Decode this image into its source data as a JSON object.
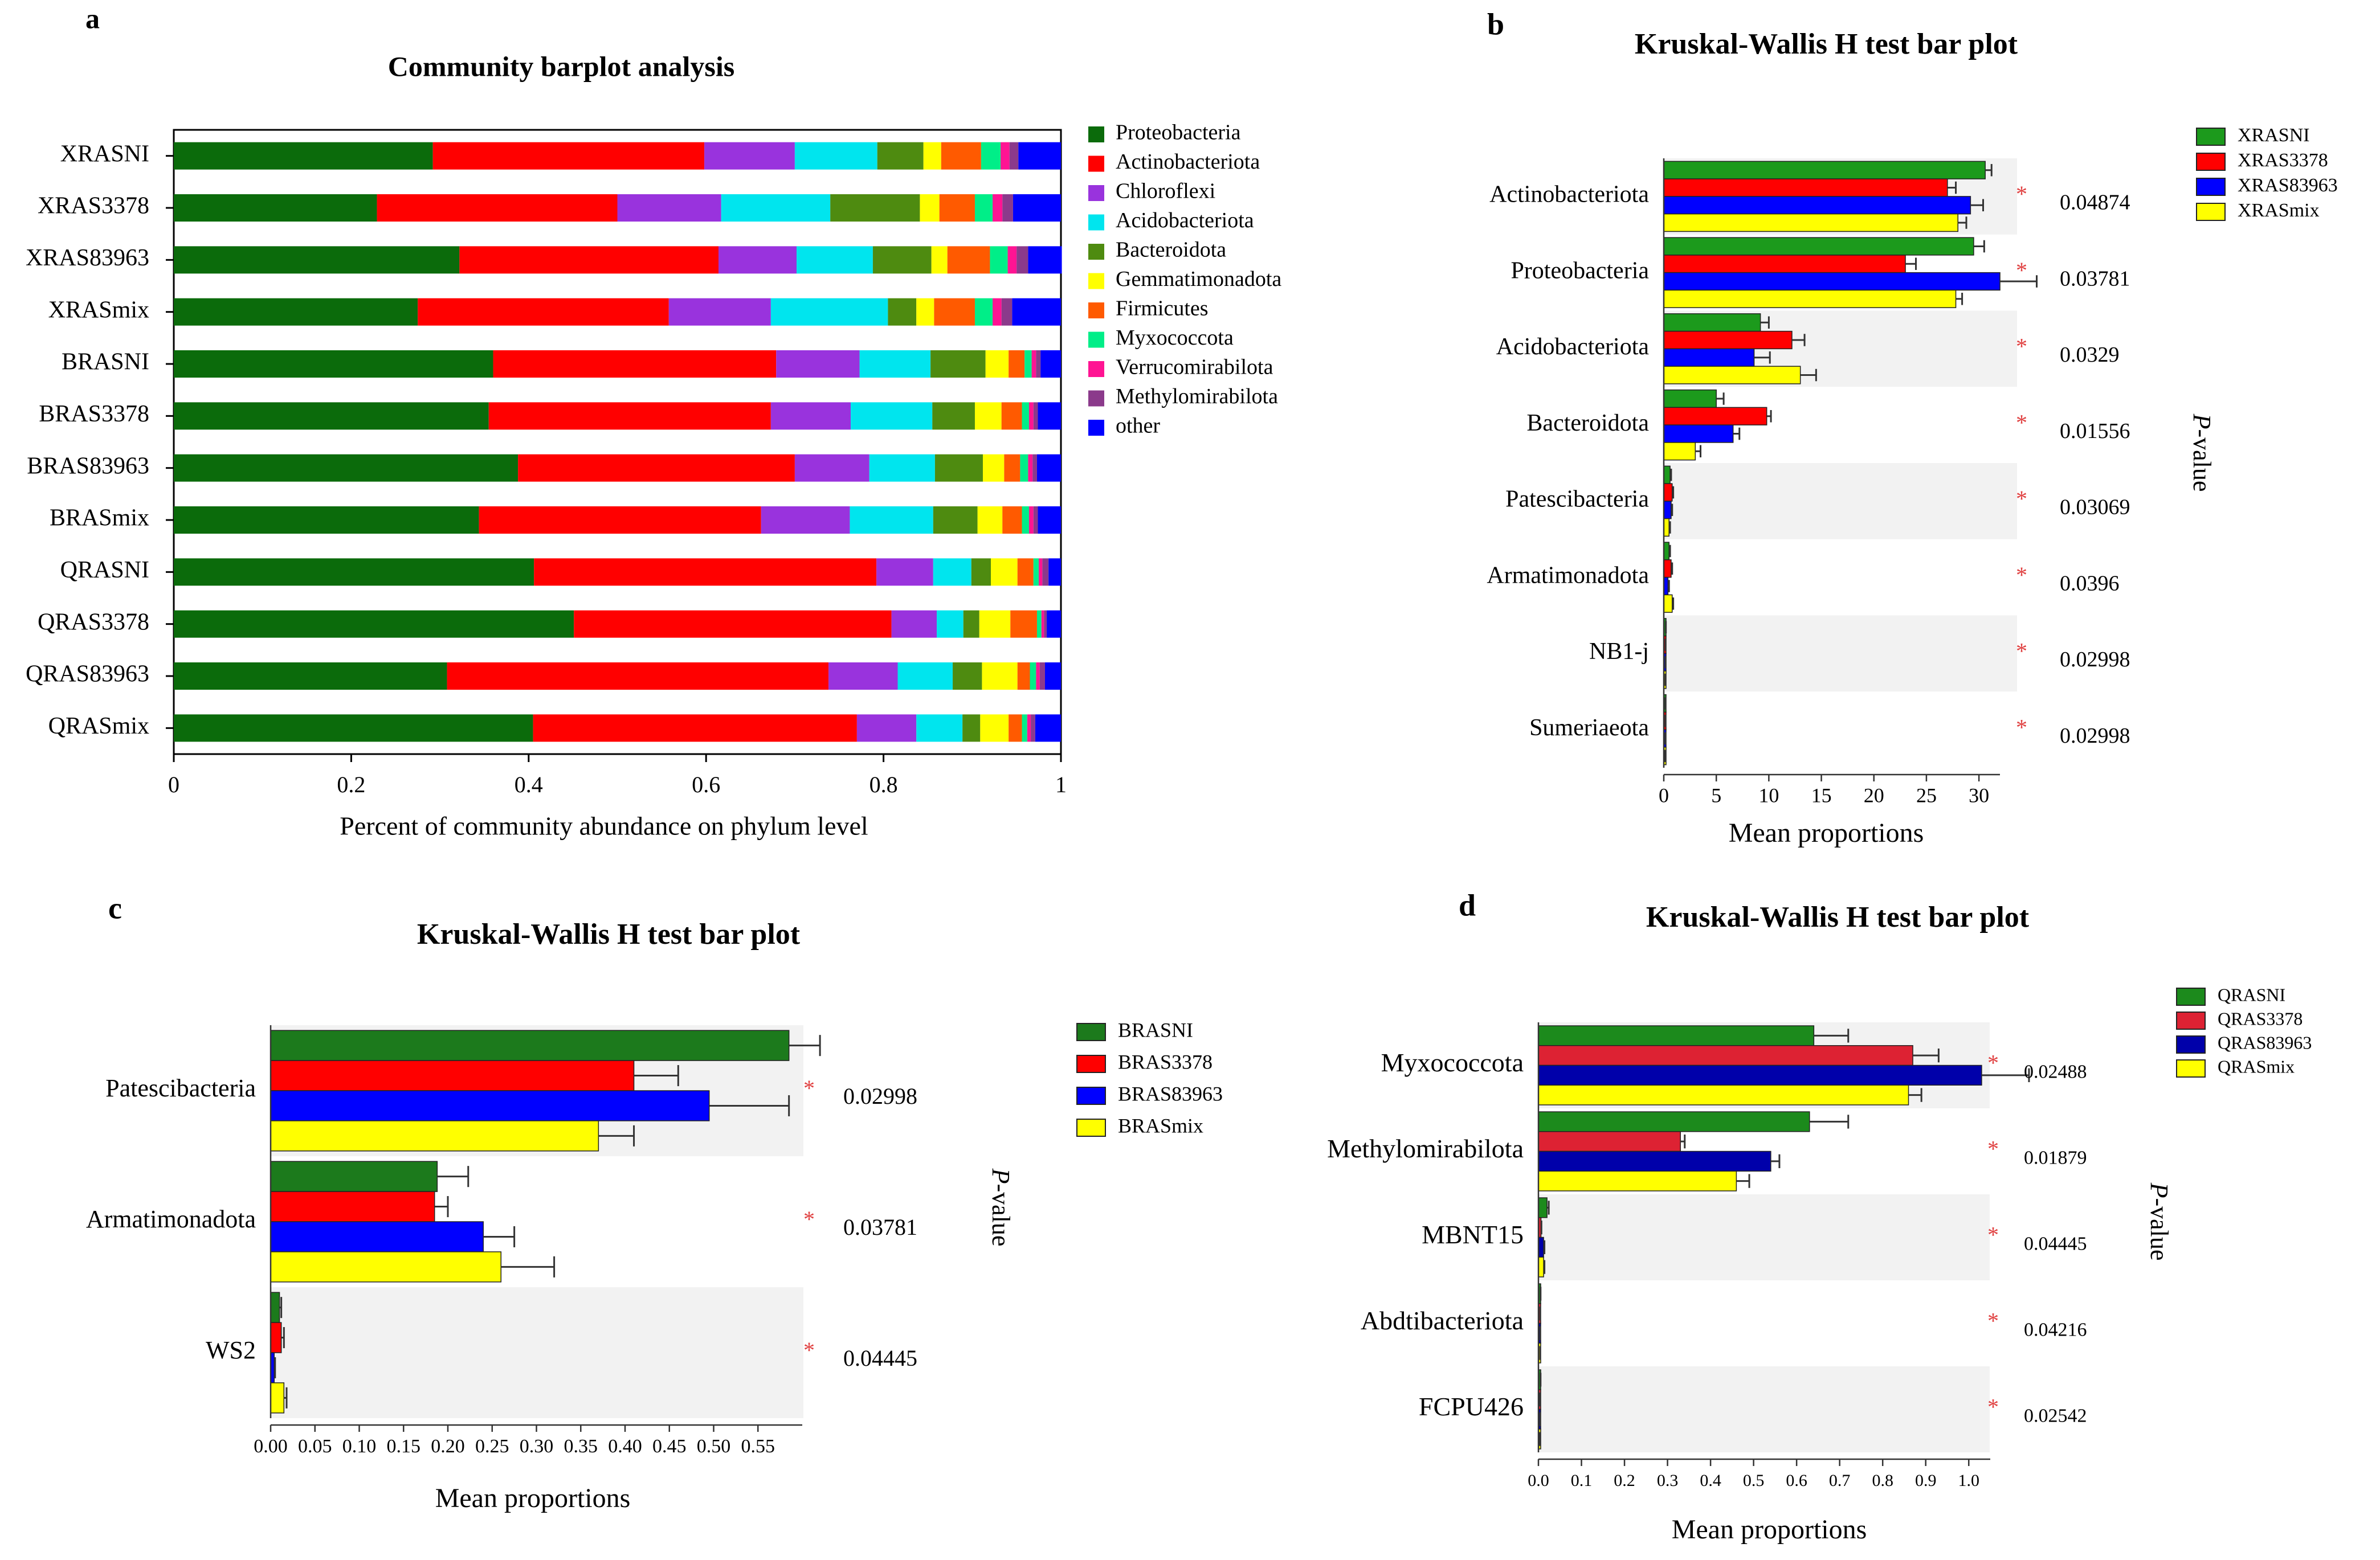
{
  "chart_data": [
    {
      "panel": "a",
      "type": "bar",
      "stacked": true,
      "orientation": "horizontal",
      "title": "Community barplot analysis",
      "xlabel": "Percent of community abundance on phylum level",
      "ylabel": "",
      "xlim": [
        0,
        1
      ],
      "xticks": [
        "0",
        "0.2",
        "0.4",
        "0.6",
        "0.8",
        "1"
      ],
      "legend_position": "right",
      "categories": [
        "XRASNI",
        "XRAS3378",
        "XRAS83963",
        "XRASmix",
        "BRASNI",
        "BRAS3378",
        "BRAS83963",
        "BRASmix",
        "QRASNI",
        "QRAS3378",
        "QRAS83963",
        "QRASmix"
      ],
      "series": [
        {
          "name": "Proteobacteria",
          "color": "#0b6b0b",
          "values": [
            0.292,
            0.229,
            0.322,
            0.275,
            0.36,
            0.355,
            0.388,
            0.344,
            0.406,
            0.451,
            0.308,
            0.405
          ]
        },
        {
          "name": "Actinobacteriota",
          "color": "#ff0000",
          "values": [
            0.306,
            0.271,
            0.292,
            0.283,
            0.319,
            0.318,
            0.312,
            0.318,
            0.386,
            0.358,
            0.43,
            0.365
          ]
        },
        {
          "name": "Chloroflexi",
          "color": "#9933dd",
          "values": [
            0.102,
            0.117,
            0.088,
            0.115,
            0.094,
            0.09,
            0.084,
            0.1,
            0.064,
            0.051,
            0.078,
            0.067
          ]
        },
        {
          "name": "Acidobacteriota",
          "color": "#00e5ee",
          "values": [
            0.093,
            0.123,
            0.086,
            0.132,
            0.08,
            0.092,
            0.074,
            0.094,
            0.043,
            0.03,
            0.062,
            0.052
          ]
        },
        {
          "name": "Bacteroidota",
          "color": "#4e8b10",
          "values": [
            0.052,
            0.101,
            0.066,
            0.032,
            0.062,
            0.048,
            0.054,
            0.05,
            0.022,
            0.018,
            0.033,
            0.02
          ]
        },
        {
          "name": "Gemmatimonadota",
          "color": "#ffff00",
          "values": [
            0.02,
            0.022,
            0.018,
            0.02,
            0.026,
            0.03,
            0.024,
            0.028,
            0.03,
            0.035,
            0.04,
            0.032
          ]
        },
        {
          "name": "Firmicutes",
          "color": "#ff5a00",
          "values": [
            0.045,
            0.04,
            0.048,
            0.046,
            0.018,
            0.023,
            0.018,
            0.022,
            0.018,
            0.03,
            0.014,
            0.015
          ]
        },
        {
          "name": "Myxococcota",
          "color": "#00ee88",
          "values": [
            0.022,
            0.02,
            0.02,
            0.02,
            0.008,
            0.008,
            0.009,
            0.008,
            0.006,
            0.005,
            0.007,
            0.006
          ]
        },
        {
          "name": "Verrucomirabilota",
          "color": "#ff1493",
          "values": [
            0.01,
            0.011,
            0.01,
            0.01,
            0.005,
            0.005,
            0.005,
            0.005,
            0.004,
            0.003,
            0.004,
            0.004
          ]
        },
        {
          "name": "Methylomirabilota",
          "color": "#8b3a8b",
          "values": [
            0.01,
            0.012,
            0.013,
            0.012,
            0.005,
            0.005,
            0.005,
            0.005,
            0.007,
            0.003,
            0.006,
            0.005
          ]
        },
        {
          "name": "other",
          "color": "#0000ff",
          "values": [
            0.048,
            0.054,
            0.038,
            0.055,
            0.023,
            0.026,
            0.027,
            0.026,
            0.014,
            0.016,
            0.018,
            0.029
          ]
        }
      ]
    },
    {
      "panel": "b",
      "type": "bar",
      "orientation": "horizontal",
      "title": "Kruskal-Wallis H test bar plot",
      "xlabel": "Mean proportions",
      "ylabel": "P-value",
      "xlim": [
        0,
        32
      ],
      "xticks": [
        "0",
        "5",
        "10",
        "15",
        "20",
        "25",
        "30"
      ],
      "legend_position": "top-right",
      "categories": [
        "Actinobacteriota",
        "Proteobacteria",
        "Acidobacteriota",
        "Bacteroidota",
        "Patescibacteria",
        "Armatimonadota",
        "NB1-j",
        "Sumeriaeota"
      ],
      "p_values": [
        "0.04874",
        "0.03781",
        "0.0329",
        "0.01556",
        "0.03069",
        "0.0396",
        "0.02998",
        "0.02998"
      ],
      "significance_mark": "*",
      "series": [
        {
          "name": "XRASNI",
          "color": "#1c9a1c",
          "values": [
            30.6,
            29.5,
            9.2,
            5.0,
            0.6,
            0.5,
            0.15,
            0.1
          ],
          "errors": [
            0.6,
            1.0,
            0.8,
            0.7,
            0.1,
            0.1,
            0.05,
            0.05
          ]
        },
        {
          "name": "XRAS3378",
          "color": "#ff0000",
          "values": [
            27.0,
            23.0,
            12.2,
            9.8,
            0.8,
            0.7,
            0.12,
            0.1
          ],
          "errors": [
            0.8,
            1.0,
            1.2,
            0.4,
            0.1,
            0.1,
            0.05,
            0.05
          ]
        },
        {
          "name": "XRAS83963",
          "color": "#0000ff",
          "values": [
            29.2,
            32.0,
            8.6,
            6.6,
            0.7,
            0.4,
            0.12,
            0.1
          ],
          "errors": [
            1.2,
            3.5,
            1.5,
            0.6,
            0.1,
            0.1,
            0.05,
            0.05
          ]
        },
        {
          "name": "XRASmix",
          "color": "#ffff00",
          "values": [
            28.0,
            27.8,
            13.0,
            3.0,
            0.5,
            0.8,
            0.1,
            0.08
          ],
          "errors": [
            0.8,
            0.6,
            1.5,
            0.5,
            0.1,
            0.1,
            0.05,
            0.05
          ]
        }
      ]
    },
    {
      "panel": "c",
      "type": "bar",
      "orientation": "horizontal",
      "title": "Kruskal-Wallis H test bar plot",
      "xlabel": "Mean proportions",
      "ylabel": "P-value",
      "xlim": [
        0,
        0.6
      ],
      "xticks": [
        "0.00",
        "0.05",
        "0.10",
        "0.15",
        "0.20",
        "0.25",
        "0.30",
        "0.35",
        "0.40",
        "0.45",
        "0.50",
        "0.55"
      ],
      "legend_position": "top-right",
      "categories": [
        "Patescibacteria",
        "Armatimonadota",
        "WS2"
      ],
      "p_values": [
        "0.02998",
        "0.03781",
        "0.04445"
      ],
      "significance_mark": "*",
      "series": [
        {
          "name": "BRASNI",
          "color": "#1c7a1c",
          "values": [
            0.585,
            0.188,
            0.01
          ],
          "errors": [
            0.035,
            0.035,
            0.002
          ]
        },
        {
          "name": "BRAS3378",
          "color": "#ff0000",
          "values": [
            0.41,
            0.185,
            0.012
          ],
          "errors": [
            0.05,
            0.015,
            0.003
          ]
        },
        {
          "name": "BRAS83963",
          "color": "#0000ff",
          "values": [
            0.495,
            0.24,
            0.004
          ],
          "errors": [
            0.09,
            0.035,
            0.001
          ]
        },
        {
          "name": "BRASmix",
          "color": "#ffff00",
          "values": [
            0.37,
            0.26,
            0.015
          ],
          "errors": [
            0.04,
            0.06,
            0.003
          ]
        }
      ]
    },
    {
      "panel": "d",
      "type": "bar",
      "orientation": "horizontal",
      "title": "Kruskal-Wallis H test bar plot",
      "xlabel": "Mean proportions",
      "ylabel": "P-value",
      "xlim": [
        0,
        1.05
      ],
      "xticks": [
        "0.0",
        "0.1",
        "0.2",
        "0.3",
        "0.4",
        "0.5",
        "0.6",
        "0.7",
        "0.8",
        "0.9",
        "1.0"
      ],
      "legend_position": "top-right",
      "categories": [
        "Myxococcota",
        "Methylomirabilota",
        "MBNT15",
        "Abdtibacteriota",
        "FCPU426"
      ],
      "p_values": [
        "0.02488",
        "0.01879",
        "0.04445",
        "0.04216",
        "0.02542"
      ],
      "significance_mark": "*",
      "series": [
        {
          "name": "QRASNI",
          "color": "#1c8a1c",
          "values": [
            0.64,
            0.63,
            0.02,
            0.004,
            0.004
          ],
          "errors": [
            0.08,
            0.09,
            0.004,
            0.001,
            0.001
          ]
        },
        {
          "name": "QRAS3378",
          "color": "#dd2233",
          "values": [
            0.87,
            0.33,
            0.006,
            0.003,
            0.002
          ],
          "errors": [
            0.06,
            0.01,
            0.001,
            0.001,
            0.001
          ]
        },
        {
          "name": "QRAS83963",
          "color": "#0000aa",
          "values": [
            1.03,
            0.54,
            0.012,
            0.003,
            0.003
          ],
          "errors": [
            0.11,
            0.02,
            0.002,
            0.001,
            0.001
          ]
        },
        {
          "name": "QRASmix",
          "color": "#ffff00",
          "values": [
            0.86,
            0.46,
            0.012,
            0.003,
            0.002
          ],
          "errors": [
            0.03,
            0.03,
            0.002,
            0.001,
            0.001
          ]
        }
      ]
    }
  ]
}
